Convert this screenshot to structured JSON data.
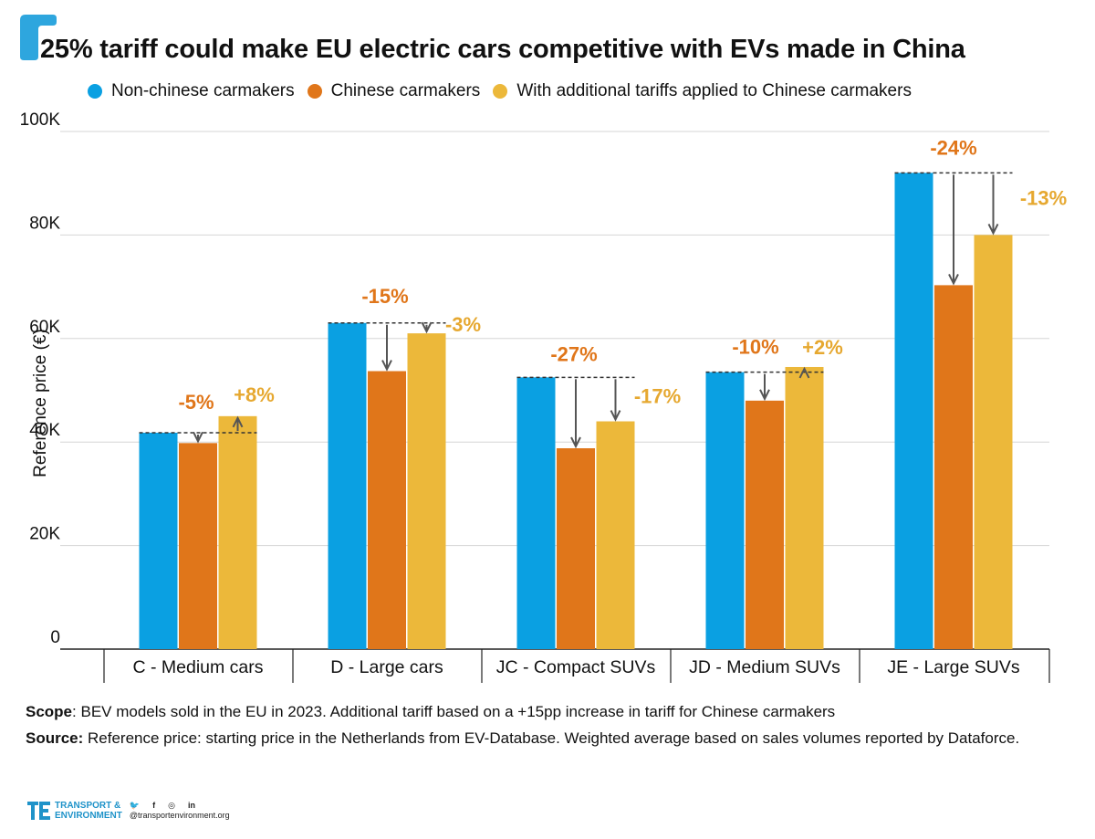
{
  "title": "25% tariff could make EU electric cars competitive with EVs made in China",
  "legend": [
    {
      "label": "Non-chinese carmakers",
      "color": "#0aa0e2"
    },
    {
      "label": "Chinese carmakers",
      "color": "#e0761a"
    },
    {
      "label": "With additional tariffs applied to Chinese carmakers",
      "color": "#ecb83a"
    }
  ],
  "colors": {
    "non_chinese": "#0aa0e2",
    "chinese": "#e0761a",
    "tariff": "#ecb83a",
    "chinese_label": "#e0761a",
    "tariff_label": "#e6a830",
    "accent": "#1f93c9"
  },
  "chart_data": {
    "type": "bar",
    "ylabel": "Reference price (€)",
    "ylim": [
      0,
      100000
    ],
    "yticks": [
      {
        "value": 0,
        "label": "0"
      },
      {
        "value": 20000,
        "label": "20K"
      },
      {
        "value": 40000,
        "label": "40K"
      },
      {
        "value": 60000,
        "label": "60K"
      },
      {
        "value": 80000,
        "label": "80K"
      },
      {
        "value": 100000,
        "label": "100K"
      }
    ],
    "grid": true,
    "categories": [
      "C - Medium cars",
      "D - Large cars",
      "JC - Compact SUVs",
      "JD - Medium SUVs",
      "JE - Large SUVs"
    ],
    "series": [
      {
        "name": "Non-chinese carmakers",
        "values": [
          41800,
          63000,
          52500,
          53500,
          92000
        ]
      },
      {
        "name": "Chinese carmakers",
        "values": [
          39800,
          53700,
          38800,
          48000,
          70300
        ]
      },
      {
        "name": "With additional tariffs applied to Chinese carmakers",
        "values": [
          45000,
          61000,
          44000,
          54500,
          80000
        ]
      }
    ],
    "annotations": {
      "chinese": [
        "-5%",
        "-15%",
        "-27%",
        "-10%",
        "-24%"
      ],
      "tariff": [
        "+8%",
        "-3%",
        "-17%",
        "+2%",
        "-13%"
      ]
    }
  },
  "footnotes": {
    "scope_key": "Scope",
    "scope_text": ": BEV models sold in the EU in 2023. Additional tariff based on a +15pp increase in tariff for Chinese carmakers",
    "source_key": "Source:",
    "source_text": " Reference price: starting price in the Netherlands from EV-Database. Weighted average based on sales volumes reported by Dataforce."
  },
  "brand": {
    "name_line1": "TRANSPORT &",
    "name_line2": "ENVIRONMENT",
    "handle": "@transportenvironment.org",
    "social": [
      "twitter-icon",
      "facebook-icon",
      "instagram-icon",
      "linkedin-icon"
    ]
  }
}
